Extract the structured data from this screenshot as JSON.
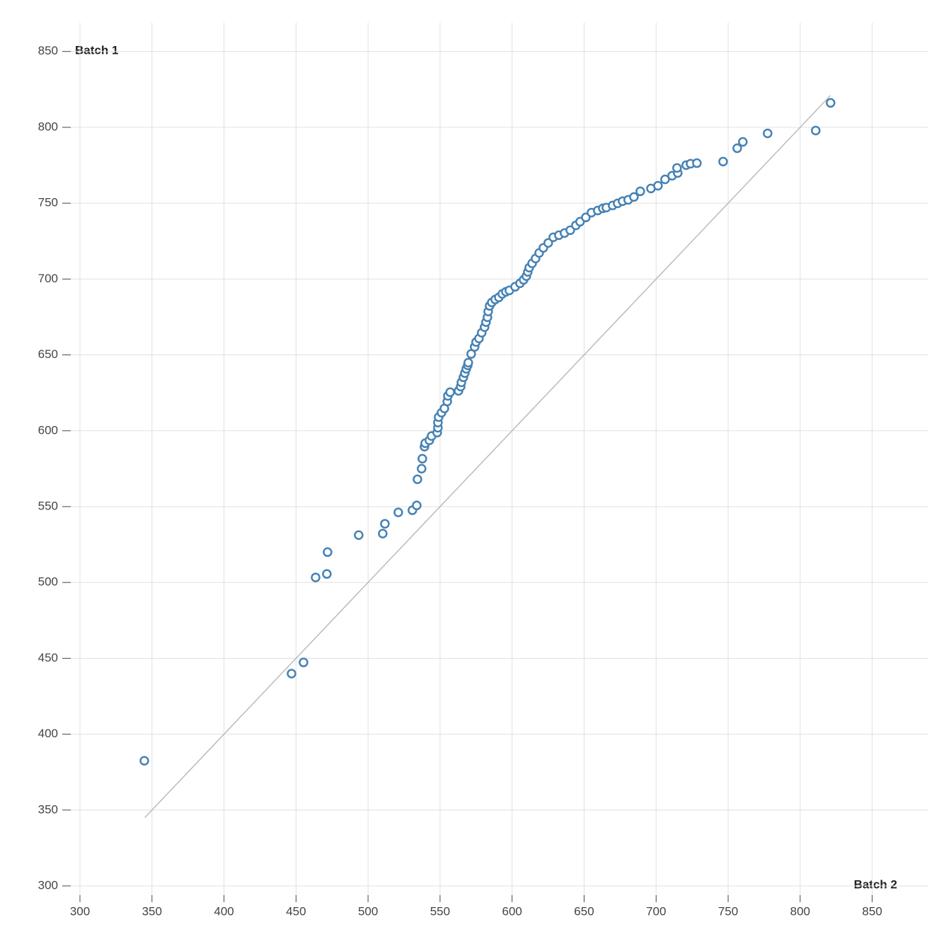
{
  "chart_data": {
    "type": "scatter",
    "x_label": "Batch 2",
    "y_label": "Batch 1",
    "xlim": [
      300,
      889
    ],
    "ylim": [
      300,
      869
    ],
    "xticks": [
      300,
      350,
      400,
      450,
      500,
      550,
      600,
      650,
      700,
      750,
      800,
      850
    ],
    "yticks": [
      300,
      350,
      400,
      450,
      500,
      550,
      600,
      650,
      700,
      750,
      800,
      850
    ],
    "grid": true,
    "reference_line": [
      345,
      821
    ],
    "series": [
      {
        "color": "#4682b4",
        "x": [
          344.7,
          446.9,
          455.2,
          463.6,
          471.4,
          471.9,
          493.5,
          510.2,
          511.7,
          521,
          530.8,
          533.8,
          534.3,
          537.2,
          537.7,
          539.2,
          539.7,
          542.6,
          544.1,
          548,
          548.5,
          548.5,
          549,
          551,
          553,
          555,
          555.4,
          557,
          562.8,
          564.3,
          564.8,
          566.2,
          567.2,
          568.2,
          569.2,
          569.6,
          571.6,
          574,
          575,
          577,
          578.9,
          580.9,
          581.9,
          582.9,
          583.4,
          584.4,
          585.9,
          588.3,
          590.8,
          593.2,
          595.7,
          598.1,
          602.1,
          605.5,
          608,
          609.9,
          610.9,
          611.9,
          613.9,
          616.3,
          618.8,
          621.7,
          625.1,
          628.6,
          632.5,
          636.4,
          640.4,
          644.3,
          647.2,
          651.2,
          655.1,
          659.5,
          663,
          665.4,
          669.8,
          673.3,
          676.7,
          680.6,
          684.6,
          689,
          696.4,
          701.3,
          706.2,
          711.1,
          715,
          714.5,
          720.9,
          723.9,
          728.3,
          746.5,
          756.3,
          760.2,
          777.4,
          810.8,
          821.1
        ],
        "values": [
          382.5,
          439.9,
          447.3,
          503.3,
          505.6,
          520,
          531.2,
          532.2,
          538.7,
          546.2,
          547.6,
          550.8,
          568,
          575,
          581.6,
          589.5,
          591.8,
          593.7,
          596.5,
          598.8,
          602,
          605.4,
          609,
          611.9,
          614.7,
          619.3,
          623,
          625.4,
          626.3,
          629.1,
          631.9,
          635.2,
          638,
          640.8,
          643.1,
          644.9,
          650.6,
          655.3,
          658.5,
          660.8,
          664.6,
          668.3,
          671.6,
          674.8,
          678.6,
          682.3,
          684.6,
          686.5,
          687.9,
          690.2,
          691.6,
          692.5,
          694.9,
          697.2,
          699.5,
          701.9,
          704.7,
          707.5,
          710.3,
          713.5,
          717.2,
          720.5,
          723.8,
          727.5,
          728.9,
          730.3,
          732.2,
          735.4,
          737.8,
          740.6,
          743.8,
          745.2,
          746.6,
          747.1,
          748.5,
          749.9,
          751.3,
          752.2,
          754.1,
          757.8,
          759.7,
          761.5,
          765.7,
          768.1,
          769.9,
          773.2,
          775.1,
          776,
          776.4,
          777.4,
          786.2,
          790.4,
          796,
          797.9,
          816.1
        ]
      }
    ]
  }
}
